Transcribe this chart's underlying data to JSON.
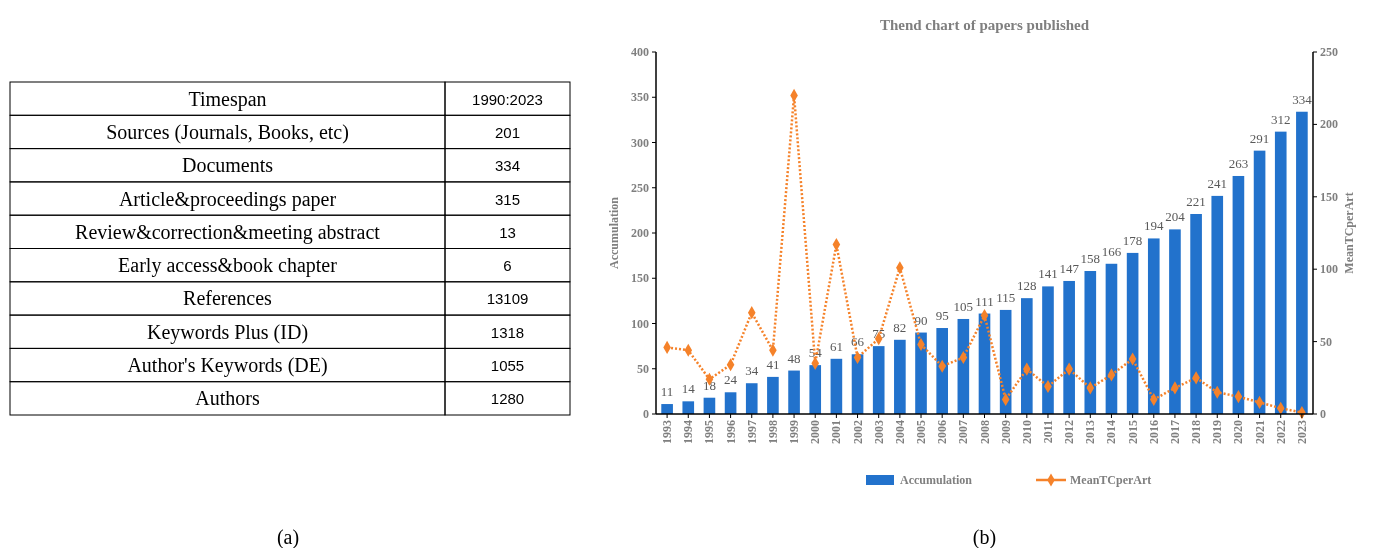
{
  "chart_data": [
    {
      "type": "other",
      "categories": [
        "Timespan",
        "Sources (Journals, Books, etc)",
        "Documents",
        "Article&proceedings paper",
        "Review&correction&meeting abstract",
        "Early access&book chapter",
        "References",
        "Keywords Plus (ID)",
        "Author's Keywords (DE)",
        "Authors"
      ],
      "value_labels": [
        "1990:2023",
        "201",
        "334",
        "315",
        "13",
        "6",
        "13109",
        "1318",
        "1055",
        "1280"
      ],
      "annotations": [
        "(a)"
      ]
    },
    {
      "type": "bar",
      "title": "Thend chart of papers published",
      "ylabel": "Accumulation",
      "y2label": "MeanTCperArt",
      "categories": [
        "1993",
        "1994",
        "1995",
        "1996",
        "1997",
        "1998",
        "1999",
        "2000",
        "2001",
        "2002",
        "2003",
        "2004",
        "2005",
        "2006",
        "2007",
        "2008",
        "2009",
        "2010",
        "2011",
        "2012",
        "2013",
        "2014",
        "2015",
        "2016",
        "2017",
        "2018",
        "2019",
        "2020",
        "2021",
        "2022",
        "2023"
      ],
      "series": [
        {
          "name": "Accumulation",
          "type": "bar",
          "color": "#2272cc",
          "values": [
            11,
            14,
            18,
            24,
            34,
            41,
            48,
            54,
            61,
            66,
            75,
            82,
            90,
            95,
            105,
            111,
            115,
            128,
            141,
            147,
            158,
            166,
            178,
            194,
            204,
            221,
            241,
            263,
            291,
            312,
            334
          ],
          "value_labels": [
            "11",
            "14",
            "18",
            "24",
            "34",
            "41",
            "48",
            "54",
            "61",
            "66",
            "75",
            "82",
            "90",
            "95",
            "105",
            "111",
            "115",
            "128",
            "141",
            "147",
            "158",
            "166",
            "178",
            "194",
            "204",
            "221",
            "241",
            "263",
            "291",
            "312",
            "334"
          ]
        },
        {
          "name": "MeanTCperArt",
          "type": "line",
          "axis": "y2",
          "color": "#f5822a",
          "marker": "diamond",
          "line_style": "dotted",
          "values": [
            46,
            44,
            24,
            34,
            70,
            44,
            220,
            35,
            117,
            39,
            52,
            101,
            48,
            33,
            39,
            68,
            10,
            31,
            19,
            31,
            18,
            27,
            38,
            10,
            18,
            25,
            15,
            12,
            8,
            4,
            1
          ]
        }
      ],
      "ylim": [
        0,
        400
      ],
      "yticks": [
        0,
        50,
        100,
        150,
        200,
        250,
        300,
        350,
        400
      ],
      "y2lim": [
        0,
        250
      ],
      "y2ticks": [
        0,
        50,
        100,
        150,
        200,
        250
      ],
      "grid": false,
      "legend": "bottom",
      "annotations": [
        "(b)"
      ]
    }
  ]
}
